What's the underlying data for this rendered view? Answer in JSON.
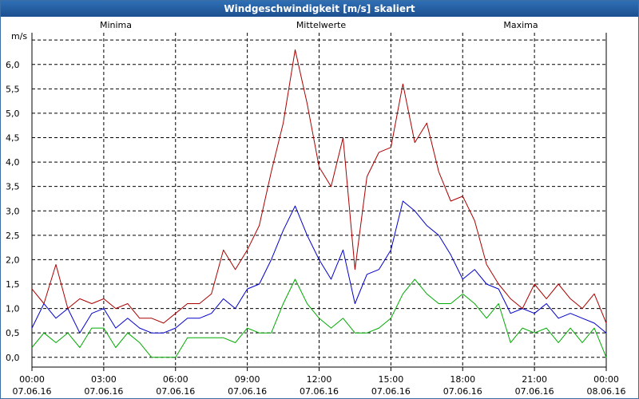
{
  "window": {
    "title": "Windgeschwindigkeit [m/s] skaliert"
  },
  "chart_data": {
    "type": "line",
    "title": "Windgeschwindigkeit [m/s] skaliert",
    "ylabel": "m/s",
    "xlabel": "",
    "ylim": [
      -0.2,
      6.65
    ],
    "xlim": [
      0,
      24
    ],
    "grid": true,
    "yticks": [
      {
        "value": 0.0,
        "label": "0,0"
      },
      {
        "value": 0.5,
        "label": "0,5"
      },
      {
        "value": 1.0,
        "label": "1,0"
      },
      {
        "value": 1.5,
        "label": "1,5"
      },
      {
        "value": 2.0,
        "label": "2,0"
      },
      {
        "value": 2.5,
        "label": "2,5"
      },
      {
        "value": 3.0,
        "label": "3,0"
      },
      {
        "value": 3.5,
        "label": "3,5"
      },
      {
        "value": 4.0,
        "label": "4,0"
      },
      {
        "value": 4.5,
        "label": "4,5"
      },
      {
        "value": 5.0,
        "label": "5,0"
      },
      {
        "value": 5.5,
        "label": "5,5"
      },
      {
        "value": 6.0,
        "label": "6,0"
      }
    ],
    "xticks": [
      {
        "value": 0,
        "time": "00:00",
        "date": "07.06.16"
      },
      {
        "value": 3,
        "time": "03:00",
        "date": "07.06.16"
      },
      {
        "value": 6,
        "time": "06:00",
        "date": "07.06.16"
      },
      {
        "value": 9,
        "time": "09:00",
        "date": "07.06.16"
      },
      {
        "value": 12,
        "time": "12:00",
        "date": "07.06.16"
      },
      {
        "value": 15,
        "time": "15:00",
        "date": "07.06.16"
      },
      {
        "value": 18,
        "time": "18:00",
        "date": "07.06.16"
      },
      {
        "value": 21,
        "time": "21:00",
        "date": "07.06.16"
      },
      {
        "value": 24,
        "time": "00:00",
        "date": "08.06.16"
      }
    ],
    "series": [
      {
        "name": "Minima",
        "color": "#00aa00",
        "x": [
          0,
          0.5,
          1,
          1.5,
          2,
          2.5,
          3,
          3.5,
          4,
          4.5,
          5,
          5.5,
          6,
          6.5,
          7,
          7.5,
          8,
          8.5,
          9,
          9.5,
          10,
          10.5,
          11,
          11.5,
          12,
          12.5,
          13,
          13.5,
          14,
          14.5,
          15,
          15.5,
          16,
          16.5,
          17,
          17.5,
          18,
          18.5,
          19,
          19.5,
          20,
          20.5,
          21,
          21.5,
          22,
          22.5,
          23,
          23.5,
          24
        ],
        "values": [
          0.2,
          0.5,
          0.3,
          0.5,
          0.2,
          0.6,
          0.6,
          0.2,
          0.5,
          0.3,
          0,
          0,
          0,
          0.4,
          0.4,
          0.4,
          0.4,
          0.3,
          0.6,
          0.5,
          0.5,
          1.1,
          1.6,
          1.1,
          0.8,
          0.6,
          0.8,
          0.5,
          0.5,
          0.6,
          0.8,
          1.3,
          1.6,
          1.3,
          1.1,
          1.1,
          1.3,
          1.1,
          0.8,
          1.1,
          0.3,
          0.6,
          0.5,
          0.6,
          0.3,
          0.6,
          0.3,
          0.6,
          0
        ]
      },
      {
        "name": "Mittelwerte",
        "color": "#0000cc",
        "x": [
          0,
          0.5,
          1,
          1.5,
          2,
          2.5,
          3,
          3.5,
          4,
          4.5,
          5,
          5.5,
          6,
          6.5,
          7,
          7.5,
          8,
          8.5,
          9,
          9.5,
          10,
          10.5,
          11,
          11.5,
          12,
          12.5,
          13,
          13.5,
          14,
          14.5,
          15,
          15.5,
          16,
          16.5,
          17,
          17.5,
          18,
          18.5,
          19,
          19.5,
          20,
          20.5,
          21,
          21.5,
          22,
          22.5,
          23,
          23.5,
          24
        ],
        "values": [
          0.6,
          1.1,
          0.8,
          1.0,
          0.5,
          0.9,
          1.0,
          0.6,
          0.8,
          0.6,
          0.5,
          0.5,
          0.6,
          0.8,
          0.8,
          0.9,
          1.2,
          1.0,
          1.4,
          1.5,
          2.0,
          2.6,
          3.1,
          2.5,
          2.0,
          1.6,
          2.2,
          1.1,
          1.7,
          1.8,
          2.2,
          3.2,
          3.0,
          2.7,
          2.5,
          2.1,
          1.6,
          1.8,
          1.5,
          1.4,
          0.9,
          1.0,
          0.9,
          1.1,
          0.8,
          0.9,
          0.8,
          0.7,
          0.5
        ]
      },
      {
        "name": "Maxima",
        "color": "#aa0000",
        "x": [
          0,
          0.5,
          1,
          1.5,
          2,
          2.5,
          3,
          3.5,
          4,
          4.5,
          5,
          5.5,
          6,
          6.5,
          7,
          7.5,
          8,
          8.5,
          9,
          9.5,
          10,
          10.5,
          11,
          11.5,
          12,
          12.5,
          13,
          13.5,
          14,
          14.5,
          15,
          15.5,
          16,
          16.5,
          17,
          17.5,
          18,
          18.5,
          19,
          19.5,
          20,
          20.5,
          21,
          21.5,
          22,
          22.5,
          23,
          23.5,
          24
        ],
        "values": [
          1.4,
          1.1,
          1.9,
          1.0,
          1.2,
          1.1,
          1.2,
          1.0,
          1.1,
          0.8,
          0.8,
          0.7,
          0.9,
          1.1,
          1.1,
          1.3,
          2.2,
          1.8,
          2.2,
          2.7,
          3.8,
          4.8,
          6.3,
          5.2,
          3.9,
          3.5,
          4.5,
          1.8,
          3.7,
          4.2,
          4.3,
          5.6,
          4.4,
          4.8,
          3.8,
          3.2,
          3.3,
          2.8,
          1.9,
          1.5,
          1.2,
          1.0,
          1.5,
          1.2,
          1.5,
          1.2,
          1.0,
          1.3,
          0.7
        ]
      }
    ]
  }
}
